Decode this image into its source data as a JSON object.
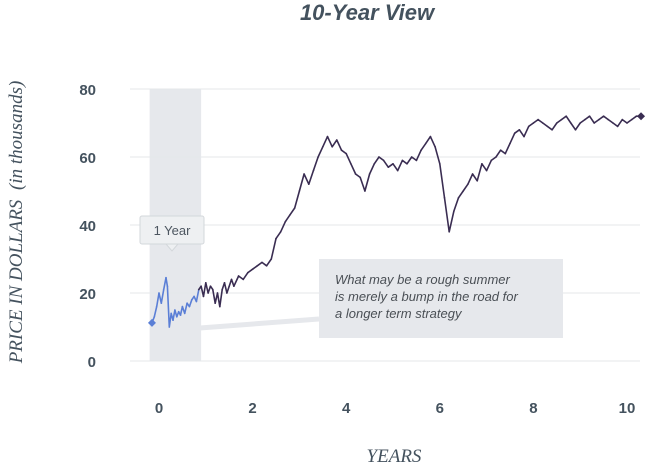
{
  "chart_data": {
    "type": "line",
    "title": "10-Year View",
    "xlabel": "YEARS",
    "ylabel": "PRICE IN DOLLARS",
    "ylabel_sub": "(in thousands)",
    "xlim": [
      -0.25,
      10.35
    ],
    "ylim": [
      0,
      80
    ],
    "xticks": [
      0,
      2,
      4,
      6,
      8,
      10
    ],
    "yticks": [
      0,
      20,
      40,
      60,
      80
    ],
    "grid": true,
    "highlight_region": {
      "x_start": -0.2,
      "x_end": 0.9,
      "label": "1 Year"
    },
    "annotation": {
      "lines": [
        "What may be a rough summer",
        "is merely a bump in the road for",
        "a longer term strategy"
      ],
      "point": [
        1.0,
        9.6
      ]
    },
    "colors": {
      "one_year": "#5b7fd6",
      "ten_year": "#3a2d52",
      "band": "#e6e8ec",
      "callout": "#e6e8ec"
    },
    "series": [
      {
        "x": [
          -0.15,
          -0.1,
          -0.05,
          0.0,
          0.05,
          0.1,
          0.15,
          0.18,
          0.22,
          0.26,
          0.3,
          0.34,
          0.38,
          0.42,
          0.46,
          0.5,
          0.55,
          0.6,
          0.65,
          0.7,
          0.75,
          0.8,
          0.85
        ],
        "y": [
          11.2,
          13,
          16,
          20,
          17,
          21,
          24.5,
          22,
          10,
          14,
          12,
          15,
          13,
          14.5,
          13.5,
          16,
          14,
          17,
          16,
          18,
          19,
          17.5,
          21
        ]
      },
      {
        "x": [
          0.85,
          0.9,
          0.95,
          1.0,
          1.05,
          1.1,
          1.15,
          1.2,
          1.25,
          1.3,
          1.35,
          1.4,
          1.45,
          1.5,
          1.55,
          1.6,
          1.7,
          1.8,
          1.9,
          2.0,
          2.1,
          2.2,
          2.3,
          2.4,
          2.5,
          2.6,
          2.7,
          2.8,
          2.9,
          3.0,
          3.1,
          3.2,
          3.3,
          3.4,
          3.5,
          3.6,
          3.7,
          3.8,
          3.9,
          4.0,
          4.1,
          4.2,
          4.3,
          4.4,
          4.5,
          4.6,
          4.7,
          4.8,
          4.9,
          5.0,
          5.1,
          5.2,
          5.3,
          5.4,
          5.5,
          5.6,
          5.7,
          5.8,
          5.9,
          6.0,
          6.1,
          6.2,
          6.3,
          6.4,
          6.5,
          6.6,
          6.7,
          6.8,
          6.9,
          7.0,
          7.1,
          7.2,
          7.3,
          7.4,
          7.5,
          7.6,
          7.7,
          7.8,
          7.9,
          8.0,
          8.1,
          8.2,
          8.3,
          8.4,
          8.5,
          8.6,
          8.7,
          8.8,
          8.9,
          9.0,
          9.1,
          9.2,
          9.3,
          9.4,
          9.5,
          9.6,
          9.7,
          9.8,
          9.9,
          10.0,
          10.1,
          10.2,
          10.3
        ],
        "y": [
          21,
          22,
          19,
          23,
          20,
          22,
          21,
          17,
          20,
          16,
          21,
          23,
          20,
          22,
          24,
          22,
          25,
          24,
          26,
          27,
          28,
          29,
          28,
          30,
          36,
          38,
          41,
          43,
          45,
          50,
          55,
          52,
          56,
          60,
          63,
          66,
          63,
          65,
          62,
          61,
          58,
          55,
          54,
          50,
          55,
          58,
          60,
          59,
          57,
          58,
          56,
          59,
          58,
          60,
          59,
          62,
          64,
          66,
          63,
          58,
          48,
          38,
          44,
          48,
          50,
          52,
          55,
          53,
          58,
          56,
          59,
          60,
          62,
          61,
          64,
          67,
          68,
          66,
          69,
          70,
          71,
          70,
          69,
          68,
          70,
          71,
          72,
          70,
          68,
          70,
          71,
          72,
          70,
          71,
          72,
          71,
          70,
          69,
          71,
          70,
          71,
          72,
          72
        ]
      }
    ]
  }
}
